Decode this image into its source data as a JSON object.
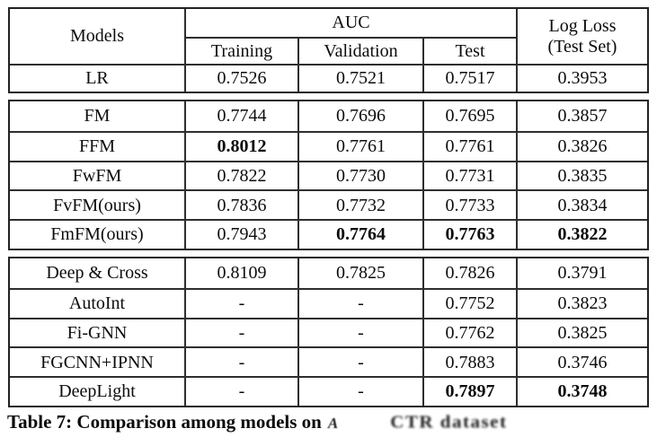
{
  "table": {
    "header": {
      "models": "Models",
      "auc": "AUC",
      "training": "Training",
      "validation": "Validation",
      "test": "Test",
      "logloss_line1": "Log Loss",
      "logloss_line2": "(Test Set)"
    },
    "groups": [
      {
        "rows": [
          {
            "model": "LR",
            "training": "0.7526",
            "validation": "0.7521",
            "test": "0.7517",
            "logloss": "0.3953"
          }
        ]
      },
      {
        "rows": [
          {
            "model": "FM",
            "training": "0.7744",
            "validation": "0.7696",
            "test": "0.7695",
            "logloss": "0.3857"
          },
          {
            "model": "FFM",
            "training": "0.8012",
            "validation": "0.7761",
            "test": "0.7761",
            "logloss": "0.3826"
          },
          {
            "model": "FwFM",
            "training": "0.7822",
            "validation": "0.7730",
            "test": "0.7731",
            "logloss": "0.3835"
          },
          {
            "model": "FvFM(ours)",
            "training": "0.7836",
            "validation": "0.7732",
            "test": "0.7733",
            "logloss": "0.3834"
          },
          {
            "model": "FmFM(ours)",
            "training": "0.7943",
            "validation": "0.7764",
            "test": "0.7763",
            "logloss": "0.3822"
          }
        ]
      },
      {
        "rows": [
          {
            "model": "Deep & Cross",
            "training": "0.8109",
            "validation": "0.7825",
            "test": "0.7826",
            "logloss": "0.3791"
          },
          {
            "model": "AutoInt",
            "training": "-",
            "validation": "-",
            "test": "0.7752",
            "logloss": "0.3823"
          },
          {
            "model": "Fi-GNN",
            "training": "-",
            "validation": "-",
            "test": "0.7762",
            "logloss": "0.3825"
          },
          {
            "model": "FGCNN+IPNN",
            "training": "-",
            "validation": "-",
            "test": "0.7883",
            "logloss": "0.3746"
          },
          {
            "model": "DeepLight",
            "training": "-",
            "validation": "-",
            "test": "0.7897",
            "logloss": "0.3748"
          }
        ]
      }
    ],
    "bold_values": [
      "0.8012",
      "0.7764",
      "0.7763",
      "0.3822",
      "0.7897",
      "0.3748"
    ]
  },
  "caption": {
    "prefix": "Table 7: Comparison among models on",
    "obscured_symbol": "A",
    "obscured_text": "CTR dataset"
  }
}
